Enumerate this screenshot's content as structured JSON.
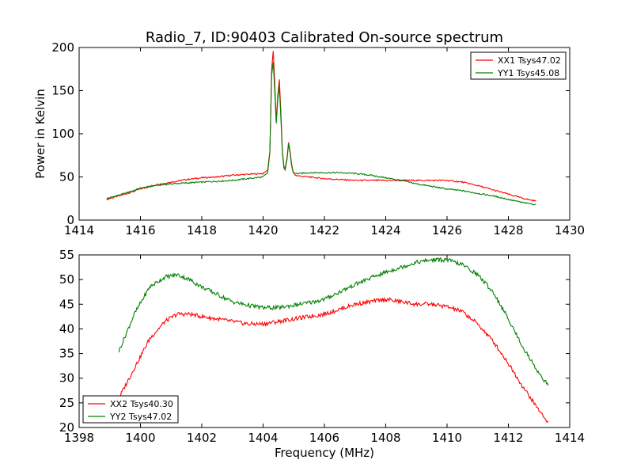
{
  "chart_data": [
    {
      "type": "line",
      "title": "Radio_7, ID:90403 Calibrated On-source spectrum",
      "xlabel": "",
      "ylabel": "Power in Kelvin",
      "xlim": [
        1414,
        1430
      ],
      "ylim": [
        0,
        200
      ],
      "xticks": [
        "1414",
        "1416",
        "1418",
        "1420",
        "1422",
        "1424",
        "1426",
        "1428",
        "1430"
      ],
      "yticks": [
        "0",
        "50",
        "100",
        "150",
        "200"
      ],
      "legend_position": "top-right",
      "series": [
        {
          "name": "XX1 Tsys47.02",
          "color": "#ff0000",
          "x": [
            1414.9,
            1415.5,
            1416.0,
            1416.5,
            1417.0,
            1417.5,
            1418.0,
            1418.5,
            1419.0,
            1419.5,
            1420.0,
            1420.15,
            1420.22,
            1420.28,
            1420.33,
            1420.38,
            1420.43,
            1420.48,
            1420.53,
            1420.58,
            1420.63,
            1420.68,
            1420.72,
            1420.78,
            1420.83,
            1420.88,
            1420.93,
            1420.98,
            1421.05,
            1421.2,
            1421.5,
            1422.0,
            1422.5,
            1423.0,
            1423.5,
            1424.0,
            1424.5,
            1425.0,
            1425.5,
            1426.0,
            1426.5,
            1427.0,
            1427.5,
            1428.0,
            1428.5,
            1428.9
          ],
          "y": [
            24,
            30,
            36,
            41,
            44,
            47,
            49,
            50,
            52,
            53,
            54,
            58,
            80,
            175,
            196,
            160,
            115,
            145,
            163,
            125,
            80,
            62,
            60,
            72,
            90,
            80,
            65,
            56,
            52,
            51,
            50,
            48,
            47,
            46,
            46,
            46,
            46,
            46,
            46,
            46,
            44,
            40,
            35,
            30,
            25,
            22
          ]
        },
        {
          "name": "YY1 Tsys45.08",
          "color": "#008000",
          "x": [
            1414.9,
            1415.5,
            1416.0,
            1416.5,
            1417.0,
            1417.5,
            1418.0,
            1418.5,
            1419.0,
            1419.5,
            1420.0,
            1420.15,
            1420.22,
            1420.28,
            1420.33,
            1420.38,
            1420.43,
            1420.48,
            1420.53,
            1420.58,
            1420.63,
            1420.68,
            1420.72,
            1420.78,
            1420.83,
            1420.88,
            1420.93,
            1420.98,
            1421.05,
            1421.2,
            1421.5,
            1422.0,
            1422.5,
            1423.0,
            1423.5,
            1424.0,
            1424.5,
            1425.0,
            1425.5,
            1426.0,
            1426.5,
            1427.0,
            1427.5,
            1428.0,
            1428.5,
            1428.9
          ],
          "y": [
            25,
            31,
            37,
            40,
            42,
            43,
            44,
            45,
            46,
            48,
            50,
            55,
            78,
            168,
            183,
            150,
            112,
            140,
            155,
            118,
            78,
            60,
            58,
            70,
            88,
            78,
            63,
            55,
            54,
            54,
            55,
            55,
            55,
            54,
            52,
            49,
            46,
            42,
            39,
            36,
            34,
            31,
            28,
            24,
            20,
            18
          ]
        }
      ]
    },
    {
      "type": "line",
      "title": "",
      "xlabel": "Frequency (MHz)",
      "ylabel": "",
      "xlim": [
        1398,
        1414
      ],
      "ylim": [
        20,
        55
      ],
      "xticks": [
        "1398",
        "1400",
        "1402",
        "1404",
        "1406",
        "1408",
        "1410",
        "1412",
        "1414"
      ],
      "yticks": [
        "20",
        "25",
        "30",
        "35",
        "40",
        "45",
        "50",
        "55"
      ],
      "legend_position": "bottom-left",
      "series": [
        {
          "name": "XX2 Tsys40.30",
          "color": "#ff0000",
          "x": [
            1399.3,
            1399.8,
            1400.3,
            1400.8,
            1401.2,
            1401.6,
            1402.0,
            1402.5,
            1403.0,
            1403.5,
            1404.0,
            1404.5,
            1405.0,
            1405.5,
            1406.0,
            1406.5,
            1407.0,
            1407.5,
            1408.0,
            1408.5,
            1409.0,
            1409.5,
            1410.0,
            1410.5,
            1411.0,
            1411.5,
            1412.0,
            1412.5,
            1413.0,
            1413.3
          ],
          "y": [
            26,
            32,
            38,
            41.5,
            43,
            43,
            42.5,
            42,
            41.5,
            41,
            41,
            41.5,
            42,
            42.5,
            43,
            44,
            45,
            45.5,
            46,
            45.5,
            45,
            45,
            44.5,
            43.5,
            41,
            37.5,
            33,
            28,
            23.5,
            21
          ]
        },
        {
          "name": "YY2 Tsys47.02",
          "color": "#008000",
          "x": [
            1399.3,
            1399.8,
            1400.3,
            1400.8,
            1401.2,
            1401.6,
            1402.0,
            1402.5,
            1403.0,
            1403.5,
            1404.0,
            1404.5,
            1405.0,
            1405.5,
            1406.0,
            1406.5,
            1407.0,
            1407.5,
            1408.0,
            1408.5,
            1409.0,
            1409.5,
            1410.0,
            1410.5,
            1411.0,
            1411.5,
            1412.0,
            1412.5,
            1413.0,
            1413.3
          ],
          "y": [
            35.5,
            43,
            48.5,
            50.5,
            51,
            50,
            48.5,
            47,
            45.5,
            44.8,
            44.3,
            44.3,
            44.8,
            45.3,
            46,
            47.5,
            49,
            50.3,
            51.5,
            52.5,
            53.5,
            54,
            54,
            53,
            51,
            47.5,
            42,
            36,
            31,
            28.5
          ]
        }
      ]
    }
  ]
}
